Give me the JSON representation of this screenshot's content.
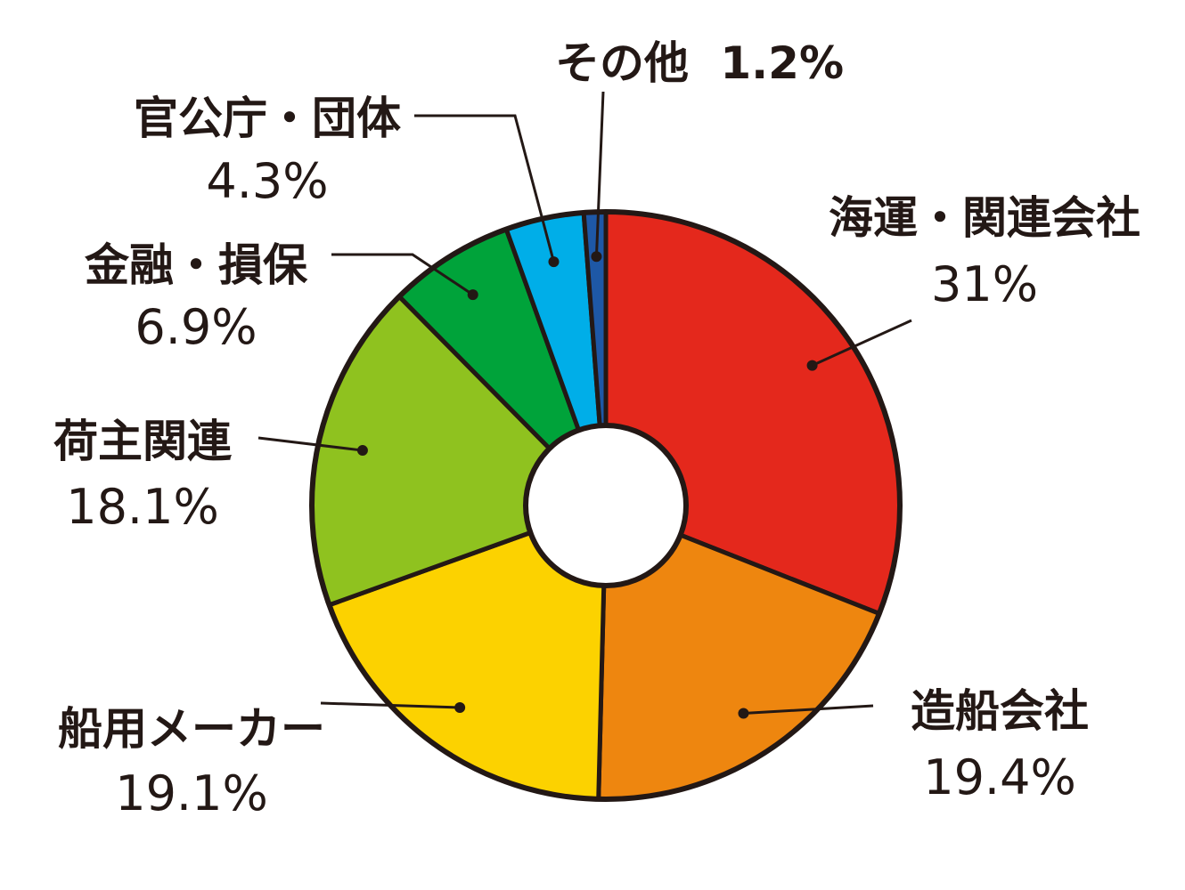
{
  "chart_data": {
    "type": "pie",
    "style": "donut",
    "slices": [
      {
        "name": "海運・関連会社",
        "value": 31.0,
        "label": "31%",
        "color": "#e4281c"
      },
      {
        "name": "造船会社",
        "value": 19.4,
        "label": "19.4%",
        "color": "#ee860f"
      },
      {
        "name": "船用メーカー",
        "value": 19.1,
        "label": "19.1%",
        "color": "#fcd200"
      },
      {
        "name": "荷主関連",
        "value": 18.1,
        "label": "18.1%",
        "color": "#8fc21f"
      },
      {
        "name": "金融・損保",
        "value": 6.9,
        "label": "6.9%",
        "color": "#00a33a"
      },
      {
        "name": "官公庁・団体",
        "value": 4.3,
        "label": "4.3%",
        "color": "#00aee8"
      },
      {
        "name": "その他",
        "value": 1.2,
        "label": "1.2%",
        "color": "#1e58a6"
      }
    ],
    "outline_color": "#231815",
    "start": "top",
    "direction": "clockwise"
  }
}
